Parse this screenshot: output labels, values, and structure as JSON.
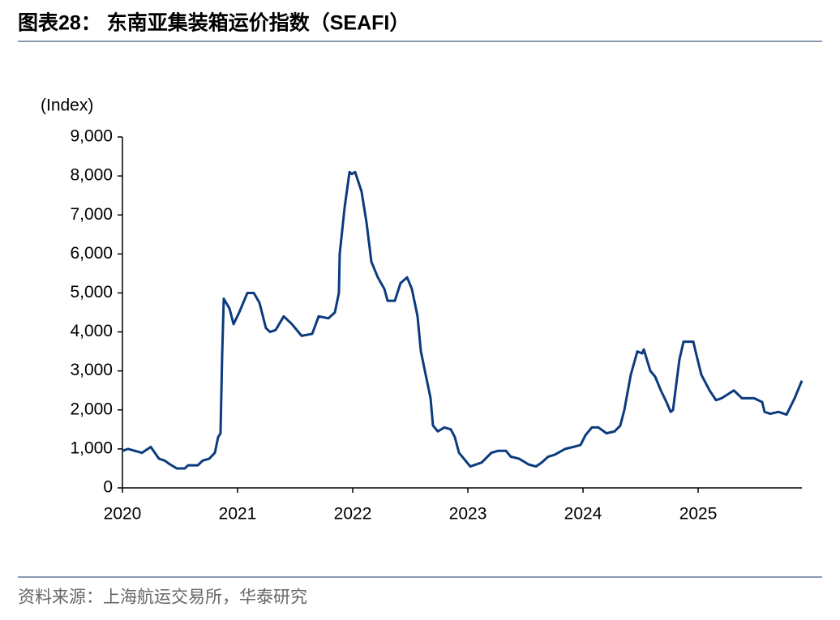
{
  "chart_data": {
    "type": "line",
    "title": "图表28：  东南亚集装箱运价指数（SEAFI）",
    "y_label": "(Index)",
    "source": "资料来源：上海航运交易所，华泰研究",
    "xlim": [
      2020,
      2025.901
    ],
    "xticks": [
      2020,
      2021,
      2022,
      2023,
      2024,
      2025
    ],
    "ylim": [
      0,
      9000
    ],
    "yticks": [
      0,
      {
        "value": 1000,
        "label": "1,000"
      },
      {
        "value": 2000,
        "label": "2,000"
      },
      {
        "value": 3000,
        "label": "3,000"
      },
      {
        "value": 4000,
        "label": "4,000"
      },
      {
        "value": 5000,
        "label": "5,000"
      },
      {
        "value": 6000,
        "label": "6,000"
      },
      {
        "value": 7000,
        "label": "7,000"
      },
      {
        "value": 8000,
        "label": "8,000"
      },
      {
        "value": 9000,
        "label": "9,000"
      }
    ],
    "grid": false,
    "series": [
      {
        "color": "#0b3b7e",
        "x": [
          2020.0,
          2020.049,
          2020.169,
          2020.246,
          2020.317,
          2020.366,
          2020.415,
          2020.472,
          2020.542,
          2020.57,
          2020.655,
          2020.697,
          2020.754,
          2020.803,
          2020.831,
          2020.852,
          2020.866,
          2020.88,
          2020.93,
          2020.965,
          2021.014,
          2021.085,
          2021.141,
          2021.19,
          2021.246,
          2021.282,
          2021.331,
          2021.401,
          2021.472,
          2021.556,
          2021.648,
          2021.704,
          2021.789,
          2021.845,
          2021.88,
          2021.887,
          2021.93,
          2021.972,
          2021.993,
          2022.021,
          2022.077,
          2022.12,
          2022.162,
          2022.218,
          2022.275,
          2022.303,
          2022.366,
          2022.415,
          2022.472,
          2022.514,
          2022.563,
          2022.592,
          2022.627,
          2022.676,
          2022.697,
          2022.739,
          2022.796,
          2022.852,
          2022.887,
          2022.923,
          2022.979,
          2023.021,
          2023.12,
          2023.204,
          2023.261,
          2023.331,
          2023.373,
          2023.444,
          2023.528,
          2023.592,
          2023.641,
          2023.697,
          2023.754,
          2023.845,
          2023.915,
          2023.979,
          2024.021,
          2024.077,
          2024.134,
          2024.204,
          2024.275,
          2024.324,
          2024.359,
          2024.415,
          2024.472,
          2024.514,
          2024.528,
          2024.585,
          2024.627,
          2024.676,
          2024.725,
          2024.761,
          2024.782,
          2024.803,
          2024.838,
          2024.873,
          2024.958,
          2024.986,
          2025.028,
          2025.099,
          2025.155,
          2025.204,
          2025.31,
          2025.38,
          2025.486,
          2025.556,
          2025.577,
          2025.627,
          2025.697,
          2025.768,
          2025.838,
          2025.901
        ],
        "values": [
          950,
          1000,
          900,
          1050,
          750,
          700,
          600,
          500,
          500,
          580,
          580,
          700,
          750,
          900,
          1300,
          1400,
          3400,
          4850,
          4600,
          4200,
          4500,
          5000,
          5000,
          4750,
          4100,
          4000,
          4050,
          4400,
          4200,
          3900,
          3950,
          4400,
          4350,
          4500,
          5000,
          6000,
          7200,
          8100,
          8050,
          8100,
          7600,
          6800,
          5800,
          5400,
          5100,
          4800,
          4800,
          5250,
          5400,
          5100,
          4400,
          3500,
          3000,
          2300,
          1600,
          1450,
          1550,
          1500,
          1300,
          900,
          700,
          550,
          650,
          900,
          950,
          950,
          800,
          750,
          600,
          550,
          650,
          800,
          850,
          1000,
          1050,
          1100,
          1350,
          1550,
          1550,
          1400,
          1450,
          1600,
          2000,
          2900,
          3500,
          3450,
          3550,
          3000,
          2850,
          2500,
          2200,
          1950,
          2000,
          2500,
          3300,
          3750,
          3750,
          3400,
          2900,
          2500,
          2250,
          2300,
          2500,
          2300,
          2300,
          2200,
          1950,
          1900,
          1950,
          1880,
          2300,
          2750
        ]
      }
    ]
  }
}
